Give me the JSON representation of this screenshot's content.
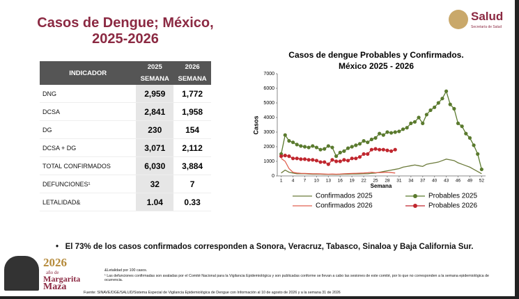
{
  "header": {
    "title": [
      "Casos de Dengue; México,",
      "2025-2026"
    ],
    "logo": {
      "name": "Salud",
      "subtitle": "Secretaría de Salud"
    }
  },
  "table": {
    "header": [
      "INDICADOR",
      "2025",
      "2026"
    ],
    "subheader": [
      "SEMANA",
      "SEMANA"
    ],
    "rows": [
      [
        "DNG",
        "2,959",
        "1,772"
      ],
      [
        "DCSA",
        "2,841",
        "1,958"
      ],
      [
        "DG",
        "230",
        "154"
      ],
      [
        "DCSA + DG",
        "3,071",
        "2,112"
      ],
      [
        "TOTAL CONFIRMADOS",
        "6,030",
        "3,884"
      ],
      [
        "DEFUNCIONES¹",
        "32",
        "7"
      ],
      [
        "LETALIDAD&",
        "1.04",
        "0.33"
      ]
    ]
  },
  "chart_data": {
    "type": "line",
    "title": [
      "Casos de dengue Probables y Confirmados.",
      "México 2025 - 2026"
    ],
    "y_label": "Casos",
    "x_label": "Semana",
    "x": [
      1,
      2,
      3,
      4,
      5,
      6,
      7,
      8,
      9,
      10,
      11,
      12,
      13,
      14,
      15,
      16,
      17,
      18,
      19,
      20,
      21,
      22,
      23,
      24,
      25,
      26,
      27,
      28,
      29,
      30,
      31,
      32,
      33,
      34,
      35,
      36,
      37,
      38,
      39,
      40,
      41,
      42,
      43,
      44,
      45,
      46,
      47,
      48,
      49,
      50,
      51,
      52
    ],
    "xlim": [
      0,
      53
    ],
    "xticks": [
      1,
      4,
      7,
      10,
      13,
      16,
      19,
      22,
      25,
      28,
      31,
      34,
      37,
      40,
      43,
      46,
      49,
      52
    ],
    "ylim": [
      0,
      7000
    ],
    "yticks": [
      0,
      1000,
      2000,
      3000,
      4000,
      5000,
      6000,
      7000
    ],
    "grid": false,
    "series": [
      {
        "name": "Confirmados 2025",
        "color": "#6b7a3a",
        "marker": false,
        "values": [
          200,
          400,
          250,
          200,
          150,
          150,
          150,
          130,
          120,
          120,
          120,
          110,
          110,
          110,
          100,
          110,
          120,
          120,
          130,
          130,
          140,
          150,
          150,
          180,
          200,
          250,
          300,
          350,
          400,
          450,
          500,
          600,
          650,
          700,
          750,
          700,
          650,
          800,
          850,
          900,
          950,
          1050,
          1150,
          1100,
          1050,
          900,
          800,
          700,
          600,
          450,
          300,
          150
        ]
      },
      {
        "name": "Probables 2025",
        "color": "#5a7a2e",
        "marker": true,
        "values": [
          1500,
          2800,
          2400,
          2300,
          2150,
          2050,
          2000,
          1950,
          2050,
          1950,
          1800,
          1850,
          2050,
          1950,
          1350,
          1600,
          1700,
          1900,
          2000,
          2100,
          2200,
          2400,
          2300,
          2500,
          2600,
          2900,
          2800,
          3000,
          2950,
          3000,
          3050,
          3200,
          3300,
          3600,
          3700,
          4000,
          3600,
          4200,
          4500,
          4700,
          5000,
          5300,
          5800,
          4900,
          4600,
          3600,
          3400,
          2900,
          2600,
          2100,
          1500,
          450
        ]
      },
      {
        "name": "Confirmados 2026",
        "color": "#e06050",
        "marker": false,
        "values": [
          1200,
          1000,
          500,
          250,
          200,
          180,
          170,
          160,
          150,
          150,
          140,
          130,
          120,
          130,
          120,
          130,
          150,
          160,
          170,
          180,
          190,
          200,
          220,
          250,
          220,
          230,
          240,
          250,
          230,
          200,
          null,
          null,
          null,
          null,
          null,
          null,
          null,
          null,
          null,
          null,
          null,
          null,
          null,
          null,
          null,
          null,
          null,
          null,
          null,
          null,
          null,
          null
        ]
      },
      {
        "name": "Probables 2026",
        "color": "#c0262e",
        "marker": true,
        "values": [
          1350,
          1400,
          1350,
          1200,
          1200,
          1150,
          1150,
          1100,
          1100,
          1050,
          950,
          950,
          800,
          1100,
          1000,
          1000,
          1100,
          1050,
          1200,
          1200,
          1300,
          1500,
          1500,
          1800,
          1850,
          1800,
          1800,
          1750,
          1700,
          1800,
          null,
          null,
          null,
          null,
          null,
          null,
          null,
          null,
          null,
          null,
          null,
          null,
          null,
          null,
          null,
          null,
          null,
          null,
          null,
          null,
          null,
          null
        ]
      }
    ]
  },
  "bullet": "El 73% de los casos confirmados corresponden a Sonora, Veracruz, Tabasco, Sinaloa y Baja California Sur.",
  "badge": [
    "2026",
    "año de",
    "Margarita",
    "Maza"
  ],
  "footnotes": [
    "&Letalidad por 100 casos.",
    "¹ Las defunciones confirmadas son avaladas por el Comité Nacional para la Vigilancia Epidemiológica y son publicadas conforme se llevan a cabo las sesiones de este comité, por lo que no corresponden a la semana epidemiológica de ocurrencia."
  ],
  "source": "Fuente: SINAVE/DGE/SALUD/Sistema Especial de Vigilancia Epidemiológica de Dengue con Información al 10 de agosto de 2026 y a la semana 31 de 2026"
}
